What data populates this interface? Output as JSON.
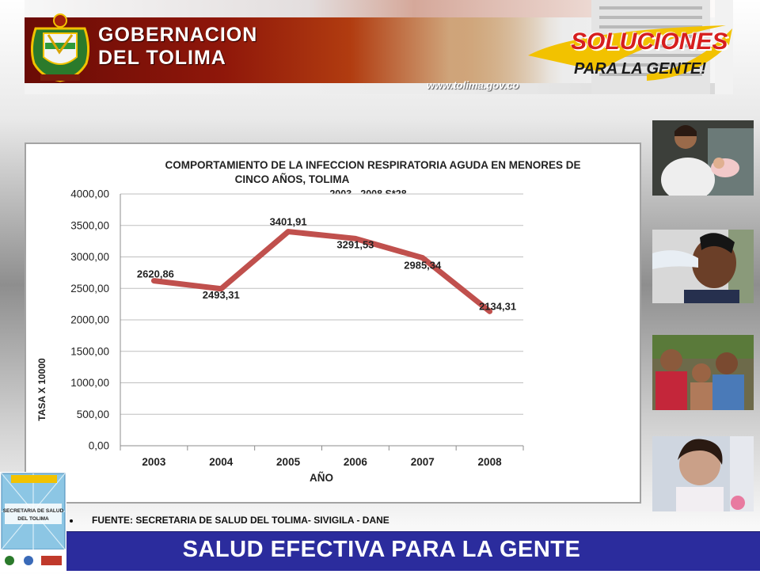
{
  "banner": {
    "title_line1": "GOBERNACION",
    "title_line2": "DEL TOLIMA",
    "slogan_line1": "SOLUCIONES",
    "slogan_line2": "PARA LA GENTE!",
    "url": "www.tolima.gov.co"
  },
  "chart_data": {
    "type": "line",
    "title_line1": "COMPORTAMIENTO DE LA INFECCION RESPIRATORIA AGUDA EN MENORES DE",
    "title_line2": "CINCO AÑOS, TOLIMA",
    "subtitle": "2003 - 2008 S*28",
    "xlabel": "AÑO",
    "ylabel": "TASA X 10000",
    "categories": [
      "2003",
      "2004",
      "2005",
      "2006",
      "2007",
      "2008"
    ],
    "series": [
      {
        "values": [
          2620.86,
          2493.31,
          3401.91,
          3291.53,
          2985.34,
          2134.31
        ],
        "labels": [
          "2620,86",
          "2493,31",
          "3401,91",
          "3291,53",
          "2985,34",
          "2134,31"
        ]
      }
    ],
    "ylim": [
      0,
      4000
    ],
    "yticks": [
      0,
      500,
      1000,
      1500,
      2000,
      2500,
      3000,
      3500,
      4000
    ],
    "ytick_labels": [
      "0,00",
      "500,00",
      "1000,00",
      "1500,00",
      "2000,00",
      "2500,00",
      "3000,00",
      "3500,00",
      "4000,00"
    ],
    "grid": true,
    "colors": {
      "line": "#c0504d",
      "grid": "#bfbfbf",
      "plot_bg": "#ffffff"
    }
  },
  "source": "FUENTE: SECRETARIA DE SALUD DEL TOLIMA- SIVIGILA - DANE",
  "footer": {
    "text": "SALUD EFECTIVA PARA LA GENTE",
    "color": "#2b2c9d"
  },
  "secretaria_logo": {
    "text_line1": "SECRETARIA DE SALUD",
    "text_line2": "DEL TOLIMA"
  }
}
